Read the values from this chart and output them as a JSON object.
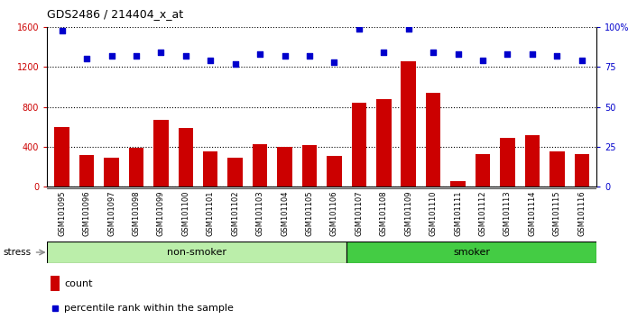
{
  "title": "GDS2486 / 214404_x_at",
  "samples": [
    "GSM101095",
    "GSM101096",
    "GSM101097",
    "GSM101098",
    "GSM101099",
    "GSM101100",
    "GSM101101",
    "GSM101102",
    "GSM101103",
    "GSM101104",
    "GSM101105",
    "GSM101106",
    "GSM101107",
    "GSM101108",
    "GSM101109",
    "GSM101110",
    "GSM101111",
    "GSM101112",
    "GSM101113",
    "GSM101114",
    "GSM101115",
    "GSM101116"
  ],
  "counts": [
    600,
    320,
    290,
    390,
    670,
    590,
    350,
    290,
    430,
    400,
    415,
    305,
    840,
    880,
    1260,
    940,
    55,
    330,
    490,
    520,
    355,
    330
  ],
  "percentile_ranks": [
    98,
    80,
    82,
    82,
    84,
    82,
    79,
    77,
    83,
    82,
    82,
    78,
    99,
    84,
    99,
    84,
    83,
    79,
    83,
    83,
    82,
    79
  ],
  "left_ylim": [
    0,
    1600
  ],
  "right_ylim": [
    0,
    100
  ],
  "left_yticks": [
    0,
    400,
    800,
    1200,
    1600
  ],
  "right_yticks": [
    0,
    25,
    50,
    75,
    100
  ],
  "bar_color": "#cc0000",
  "dot_color": "#0000cc",
  "non_smoker_color": "#bbeeaa",
  "smoker_color": "#44cc44",
  "non_smoker_label": "non-smoker",
  "smoker_label": "smoker",
  "stress_label": "stress",
  "non_smoker_count": 12,
  "smoker_count": 10,
  "grid_color": "black",
  "plot_bg_color": "white",
  "label_bg_color": "#d8d8d8"
}
